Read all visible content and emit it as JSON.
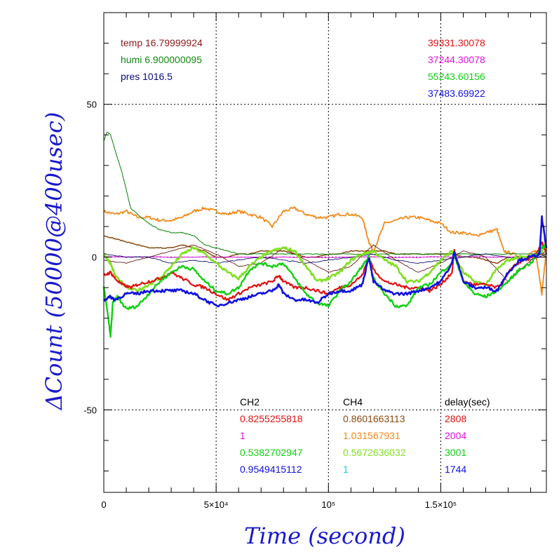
{
  "chart_data": {
    "type": "line",
    "xlabel": "Time (second)",
    "ylabel": "ΔCount (50000@400usec)",
    "xlim": [
      0,
      197000
    ],
    "ylim": [
      -77,
      80
    ],
    "x_ticks": [
      {
        "value": 0,
        "label": "0"
      },
      {
        "value": 50000,
        "label": "5×10⁴"
      },
      {
        "value": 100000,
        "label": "10⁵"
      },
      {
        "value": 150000,
        "label": "1.5×10⁵"
      }
    ],
    "y_ticks": [
      {
        "value": 50,
        "label": "50"
      },
      {
        "value": 0,
        "label": "0"
      },
      {
        "value": -50,
        "label": "-50"
      }
    ],
    "grid": true,
    "env_labels": [
      {
        "text": "temp 16.79999924",
        "color": "#8b1a1a"
      },
      {
        "text": "humi 6.900000095",
        "color": "#138a13"
      },
      {
        "text": "pres 1016.5",
        "color": "#0b0b80"
      }
    ],
    "total_labels": [
      {
        "text": "39331.30078",
        "color": "#e01010"
      },
      {
        "text": "37244.30078",
        "color": "#e010e0"
      },
      {
        "text": "55243.60156",
        "color": "#10d010"
      },
      {
        "text": "37483.69922",
        "color": "#1010e0"
      }
    ],
    "table_headers": [
      "CH2",
      "CH4",
      "delay(sec)"
    ],
    "table_rows": [
      {
        "ch2": "0.8255255818",
        "ch2_color": "#e01010",
        "ch4": "0.8601663113",
        "ch4_color": "#8b4a10",
        "delay": "2808",
        "delay_color": "#e01010"
      },
      {
        "ch2": "1",
        "ch2_color": "#e010e0",
        "ch4": "1.031567931",
        "ch4_color": "#f08a1a",
        "delay": "2004",
        "delay_color": "#e010e0"
      },
      {
        "ch2": "0.5382702947",
        "ch2_color": "#10d010",
        "ch4": "0.5672636032",
        "ch4_color": "#80e020",
        "delay": "3001",
        "delay_color": "#10d010"
      },
      {
        "ch2": "0.9549415112",
        "ch2_color": "#1010e0",
        "ch4": "1",
        "ch4_color": "#10d0e0",
        "delay": "1744",
        "delay_color": "#1010e0"
      }
    ],
    "series": [
      {
        "color": "#f08a1a",
        "width": 1.8,
        "x": [
          0,
          5000,
          10000,
          15000,
          20000,
          25000,
          30000,
          35000,
          40000,
          45000,
          50000,
          55000,
          60000,
          65000,
          70000,
          75000,
          80000,
          85000,
          90000,
          95000,
          100000,
          105000,
          110000,
          115000,
          118000,
          120000,
          125000,
          130000,
          135000,
          140000,
          145000,
          150000,
          155000,
          160000,
          165000,
          170000,
          175000,
          178000,
          182000,
          187000,
          192000,
          195000,
          197000
        ],
        "y": [
          15,
          14,
          15,
          13,
          13,
          12,
          12,
          13,
          15,
          16,
          15,
          14,
          15,
          14,
          13,
          10,
          15,
          16,
          14,
          13,
          13,
          14,
          14,
          13,
          5,
          2,
          11,
          12,
          13,
          13,
          12,
          11,
          8,
          8,
          7,
          8,
          9,
          2,
          1,
          0,
          2,
          -12,
          3
        ]
      },
      {
        "color": "#8b4a10",
        "width": 1.5,
        "x": [
          0,
          5000,
          10000,
          15000,
          20000,
          25000,
          30000,
          35000,
          40000,
          45000,
          50000,
          55000,
          60000,
          65000,
          70000,
          75000,
          80000,
          85000,
          90000,
          95000,
          100000,
          105000,
          110000,
          115000,
          120000,
          125000,
          130000,
          135000,
          140000,
          145000,
          150000,
          155000,
          160000,
          165000,
          170000,
          175000,
          180000,
          185000,
          190000,
          195000,
          197000
        ],
        "y": [
          7,
          6,
          5,
          4,
          3,
          3,
          3,
          4,
          3,
          2,
          0,
          0,
          1,
          1,
          2,
          2,
          2,
          1,
          0,
          0,
          1,
          1,
          2,
          2,
          2,
          2,
          1,
          1,
          1,
          1,
          1,
          1,
          0,
          0,
          -1,
          -2,
          0,
          0,
          0,
          1,
          0
        ]
      },
      {
        "color": "#1a8a1a",
        "width": 1.1,
        "x": [
          0,
          1500,
          3000,
          5000,
          8000,
          10000,
          12000,
          15000,
          20000,
          25000,
          30000,
          35000,
          40000,
          45000,
          50000,
          55000,
          60000,
          70000,
          80000,
          90000,
          100000,
          120000,
          140000,
          160000,
          180000,
          197000
        ],
        "y": [
          38,
          41,
          40,
          35,
          28,
          22,
          16,
          14,
          11,
          9,
          8,
          8,
          7,
          4,
          3,
          2,
          1,
          1,
          1,
          1,
          1,
          1,
          1,
          1,
          1,
          1
        ]
      },
      {
        "color": "#e010e0",
        "width": 1.0,
        "x": [
          0,
          50000,
          100000,
          150000,
          197000
        ],
        "y": [
          0,
          0,
          0,
          0,
          0
        ]
      },
      {
        "color": "#6a1a1a",
        "width": 0.9,
        "x": [
          0,
          10000,
          20000,
          30000,
          40000,
          50000,
          60000,
          70000,
          80000,
          90000,
          100000,
          110000,
          120000,
          130000,
          140000,
          150000,
          160000,
          170000,
          180000,
          190000,
          197000
        ],
        "y": [
          -1,
          -2,
          0,
          2,
          4,
          1,
          -3,
          -2,
          3,
          -1,
          -5,
          -3,
          4,
          -1,
          -5,
          -2,
          2,
          0,
          -8,
          -1,
          2
        ]
      },
      {
        "color": "#10106a",
        "width": 0.9,
        "x": [
          0,
          10000,
          20000,
          30000,
          40000,
          50000,
          60000,
          70000,
          80000,
          90000,
          100000,
          110000,
          120000,
          130000,
          140000,
          150000,
          160000,
          170000,
          180000,
          190000,
          197000
        ],
        "y": [
          1,
          0,
          0,
          -2,
          -1,
          -2,
          -1,
          0,
          -1,
          -2,
          -1,
          0,
          1,
          -1,
          -2,
          -1,
          0,
          1,
          0,
          -1,
          1
        ]
      },
      {
        "color": "#80e020",
        "width": 2.6,
        "x": [
          0,
          3000,
          5000,
          10000,
          15000,
          20000,
          25000,
          30000,
          35000,
          40000,
          45000,
          50000,
          55000,
          60000,
          65000,
          70000,
          75000,
          80000,
          85000,
          90000,
          95000,
          100000,
          105000,
          110000,
          115000,
          120000,
          125000,
          130000,
          135000,
          140000,
          145000,
          150000,
          155000,
          160000,
          165000,
          170000,
          175000,
          180000,
          185000,
          190000,
          195000,
          197000
        ],
        "y": [
          1,
          -2,
          -6,
          -10,
          -11,
          -9,
          -7,
          -3,
          1,
          3,
          1,
          -2,
          -5,
          -7,
          -3,
          0,
          2,
          3,
          2,
          -3,
          -8,
          -7,
          -5,
          -1,
          1,
          2,
          -1,
          -3,
          -8,
          -8,
          -5,
          -1,
          2,
          -5,
          -8,
          -9,
          -4,
          -1,
          0,
          0,
          2,
          5
        ]
      },
      {
        "color": "#e01010",
        "width": 2.2,
        "x": [
          0,
          3000,
          5000,
          8000,
          12000,
          15000,
          20000,
          25000,
          30000,
          35000,
          40000,
          45000,
          50000,
          55000,
          60000,
          65000,
          70000,
          75000,
          78000,
          80000,
          85000,
          90000,
          95000,
          100000,
          105000,
          110000,
          115000,
          118000,
          120000,
          125000,
          130000,
          135000,
          140000,
          145000,
          150000,
          155000,
          156000,
          160000,
          165000,
          170000,
          175000,
          178000,
          182000,
          187000,
          192000,
          195000,
          197000
        ],
        "y": [
          -6,
          -5,
          -7,
          -9,
          -10,
          -9,
          -8,
          -7,
          -5,
          -7,
          -9,
          -10,
          -12,
          -14,
          -12,
          -10,
          -9,
          -8,
          -6,
          -8,
          -10,
          -10,
          -11,
          -12,
          -10,
          -9,
          -6,
          0,
          -4,
          -8,
          -9,
          -10,
          -10,
          -11,
          -9,
          -5,
          2,
          -8,
          -9,
          -9,
          -10,
          -8,
          -3,
          -1,
          0,
          5,
          1
        ]
      },
      {
        "color": "#10d010",
        "width": 2.4,
        "x": [
          0,
          2000,
          3000,
          4000,
          6000,
          10000,
          15000,
          20000,
          25000,
          30000,
          35000,
          40000,
          45000,
          50000,
          55000,
          60000,
          65000,
          70000,
          75000,
          80000,
          85000,
          90000,
          95000,
          100000,
          105000,
          110000,
          115000,
          118000,
          120000,
          125000,
          130000,
          135000,
          140000,
          145000,
          150000,
          155000,
          156000,
          160000,
          165000,
          170000,
          175000,
          180000,
          185000,
          190000,
          195000,
          197000
        ],
        "y": [
          -10,
          -20,
          -26,
          -15,
          -13,
          -17,
          -16,
          -12,
          -8,
          -5,
          -3,
          -4,
          -8,
          -11,
          -12,
          -10,
          -4,
          -2,
          -3,
          -2,
          -7,
          -12,
          -15,
          -16,
          -11,
          -8,
          -3,
          0,
          -7,
          -12,
          -16,
          -16,
          -10,
          -9,
          -5,
          -2,
          1,
          -8,
          -12,
          -13,
          -11,
          -8,
          -4,
          -2,
          3,
          4
        ]
      },
      {
        "color": "#1010e0",
        "width": 2.6,
        "x": [
          0,
          3000,
          5000,
          10000,
          15000,
          20000,
          25000,
          30000,
          35000,
          40000,
          45000,
          50000,
          55000,
          60000,
          65000,
          70000,
          75000,
          78000,
          80000,
          85000,
          90000,
          95000,
          100000,
          105000,
          110000,
          115000,
          118000,
          120000,
          125000,
          130000,
          135000,
          140000,
          145000,
          150000,
          155000,
          156000,
          160000,
          165000,
          170000,
          175000,
          180000,
          185000,
          190000,
          194000,
          195000,
          197000
        ],
        "y": [
          -14,
          -13,
          -14,
          -12,
          -12,
          -11,
          -11,
          -11,
          -11,
          -12,
          -14,
          -16,
          -15,
          -14,
          -13,
          -12,
          -11,
          -9,
          -12,
          -14,
          -14,
          -15,
          -12,
          -11,
          -11,
          -9,
          0,
          -8,
          -11,
          -12,
          -12,
          -11,
          -10,
          -8,
          -2,
          2,
          -8,
          -10,
          -10,
          -11,
          -5,
          -1,
          0,
          1,
          13,
          3
        ]
      }
    ]
  }
}
